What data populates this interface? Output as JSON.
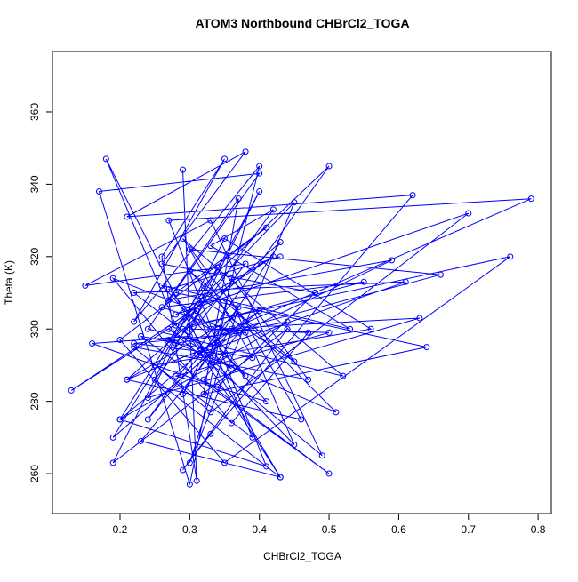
{
  "chart_data": {
    "type": "line",
    "title": "ATOM3 Northbound CHBrCl2_TOGA",
    "x_label": "CHBrCl2_TOGA",
    "y_label": "Theta (K)",
    "color": "#0000ff",
    "markers": true,
    "xlim": [
      0.103,
      0.819
    ],
    "ylim": [
      248.96,
      376.7
    ],
    "xticks": [
      0.2,
      0.3,
      0.4,
      0.5,
      0.6,
      0.7,
      0.8
    ],
    "yticks": [
      260,
      280,
      300,
      320,
      340,
      360
    ],
    "x": [
      0.29,
      0.31,
      0.26,
      0.35,
      0.22,
      0.4,
      0.33,
      0.18,
      0.28,
      0.45,
      0.3,
      0.37,
      0.24,
      0.5,
      0.32,
      0.2,
      0.41,
      0.27,
      0.79,
      0.36,
      0.23,
      0.43,
      0.3,
      0.16,
      0.34,
      0.48,
      0.26,
      0.38,
      0.21,
      0.62,
      0.33,
      0.29,
      0.44,
      0.19,
      0.35,
      0.56,
      0.25,
      0.39,
      0.31,
      0.13,
      0.42,
      0.28,
      0.7,
      0.33,
      0.22,
      0.47,
      0.36,
      0.3,
      0.17,
      0.4,
      0.27,
      0.59,
      0.34,
      0.21,
      0.46,
      0.38,
      0.29,
      0.52,
      0.24,
      0.37,
      0.32,
      0.64,
      0.28,
      0.41,
      0.2,
      0.35,
      0.76,
      0.3,
      0.43,
      0.25,
      0.38,
      0.15,
      0.33,
      0.49,
      0.27,
      0.36,
      0.22,
      0.61,
      0.31,
      0.4,
      0.19,
      0.34,
      0.45,
      0.29,
      0.55,
      0.26,
      0.37,
      0.32,
      0.5,
      0.23,
      0.39,
      0.3,
      0.66,
      0.35,
      0.2,
      0.44,
      0.28,
      0.42,
      0.33,
      0.53,
      0.26,
      0.38,
      0.31,
      0.19,
      0.36,
      0.47,
      0.3,
      0.4,
      0.24,
      0.63,
      0.34,
      0.29,
      0.43,
      0.21,
      0.37,
      0.51,
      0.27,
      0.32,
      0.45,
      0.3,
      0.38,
      0.22,
      0.35,
      0.41,
      0.28,
      0.5,
      0.33,
      0.31,
      0.27,
      0.43
    ],
    "y": [
      344,
      258,
      320,
      347,
      302,
      345,
      290,
      347,
      301,
      335,
      263,
      306,
      275,
      345,
      312,
      275,
      262,
      330,
      336,
      300,
      269,
      259,
      298,
      296,
      284,
      310,
      318,
      349,
      331,
      337,
      271,
      261,
      300,
      263,
      325,
      300,
      290,
      270,
      305,
      283,
      320,
      304,
      332,
      277,
      295,
      286,
      314,
      257,
      338,
      343,
      308,
      319,
      296,
      286,
      275,
      302,
      325,
      287,
      300,
      336,
      282,
      295,
      310,
      328,
      297,
      263,
      320,
      301,
      259,
      286,
      318,
      312,
      330,
      265,
      300,
      289,
      310,
      313,
      293,
      305,
      270,
      317,
      268,
      300,
      313,
      306,
      299,
      286,
      260,
      298,
      292,
      322,
      315,
      299,
      275,
      302,
      296,
      333,
      323,
      300,
      312,
      287,
      305,
      314,
      274,
      299,
      300,
      338,
      281,
      303,
      300,
      282,
      324,
      286,
      304,
      277,
      297,
      308,
      291,
      316,
      299,
      296,
      293,
      280,
      287,
      299,
      300,
      302,
      311,
      320
    ]
  }
}
